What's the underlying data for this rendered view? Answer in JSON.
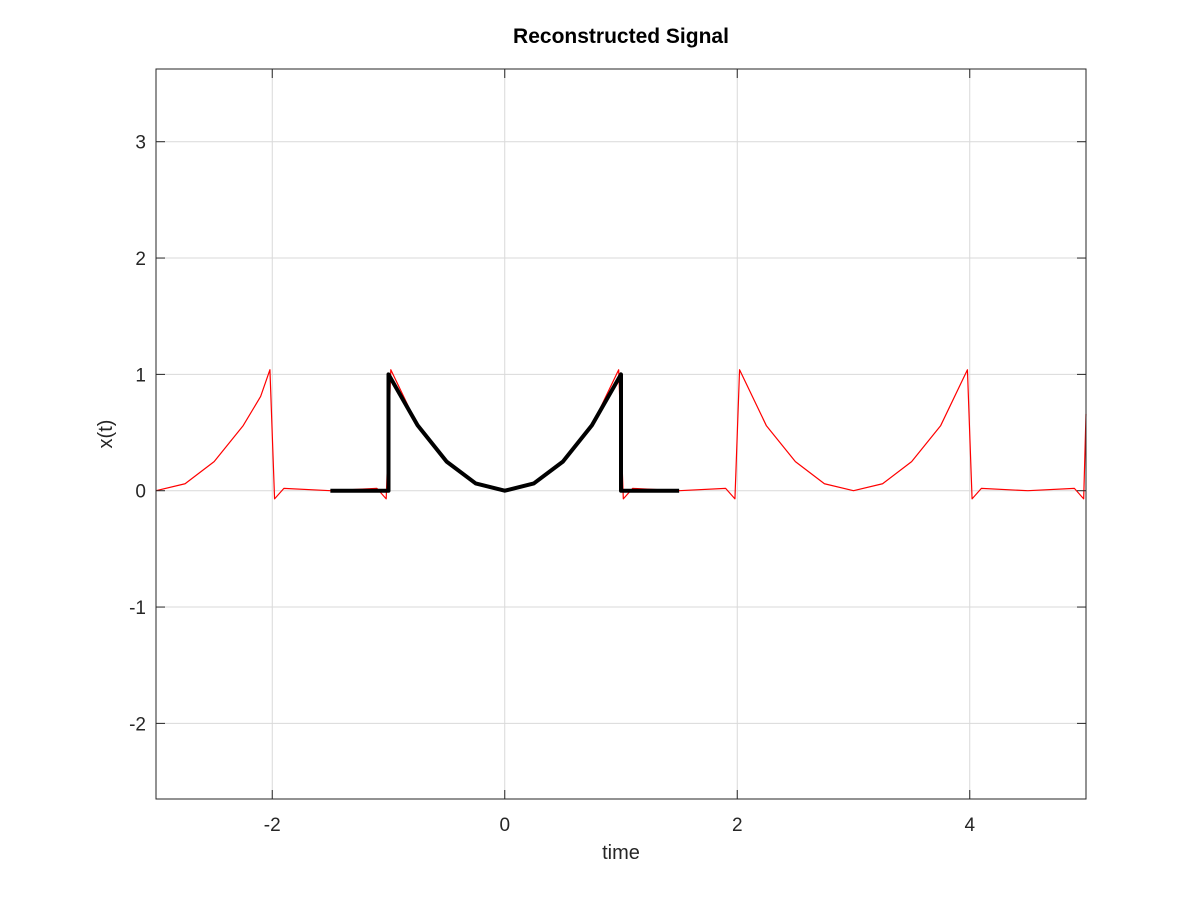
{
  "chart_data": {
    "type": "line",
    "title": "Reconstructed Signal",
    "xlabel": "time",
    "ylabel": "x(t)",
    "xlim": [
      -3,
      5
    ],
    "ylim": [
      -2.65,
      3.625
    ],
    "xticks": [
      -2,
      0,
      2,
      4
    ],
    "xtick_labels": [
      "-2",
      "0",
      "2",
      "4"
    ],
    "yticks": [
      -2,
      -1,
      0,
      1,
      2,
      3
    ],
    "ytick_labels": [
      "-2",
      "-1",
      "0",
      "1",
      "2",
      "3"
    ],
    "grid": true,
    "series": [
      {
        "style": "thin red line",
        "color": "#ff0000",
        "period": 4,
        "x": [
          -3.0,
          -2.75,
          -2.5,
          -2.25,
          -2.1,
          -2.02,
          -1.98,
          -1.9,
          -1.5,
          -1.1,
          -1.02,
          -0.98,
          -0.75,
          -0.5,
          -0.25,
          0,
          0.25,
          0.5,
          0.75,
          0.98,
          1.02,
          1.1,
          1.5,
          1.9,
          1.98,
          2.02,
          2.25,
          2.5,
          2.75,
          3.0,
          3.25,
          3.5,
          3.75,
          3.98,
          4.02,
          4.1,
          4.5,
          4.9,
          4.98,
          5.0
        ],
        "y": [
          0.0,
          0.06,
          0.25,
          0.56,
          0.81,
          1.04,
          -0.07,
          0.02,
          0.0,
          0.02,
          -0.07,
          1.04,
          0.56,
          0.25,
          0.06,
          0.0,
          0.06,
          0.25,
          0.56,
          1.04,
          -0.07,
          0.02,
          0.0,
          0.02,
          -0.07,
          1.04,
          0.56,
          0.25,
          0.06,
          0.0,
          0.06,
          0.25,
          0.56,
          1.04,
          -0.07,
          0.02,
          0.0,
          0.02,
          -0.07,
          0.66
        ]
      },
      {
        "style": "thick black line",
        "color": "#000000",
        "x": [
          -1.5,
          -1.0,
          -1.0,
          -0.75,
          -0.5,
          -0.25,
          0,
          0.25,
          0.5,
          0.75,
          1.0,
          1.0,
          1.5
        ],
        "y": [
          0.0,
          0.0,
          1.0,
          0.5625,
          0.25,
          0.0625,
          0.0,
          0.0625,
          0.25,
          0.5625,
          1.0,
          0.0,
          0.0
        ]
      }
    ]
  }
}
